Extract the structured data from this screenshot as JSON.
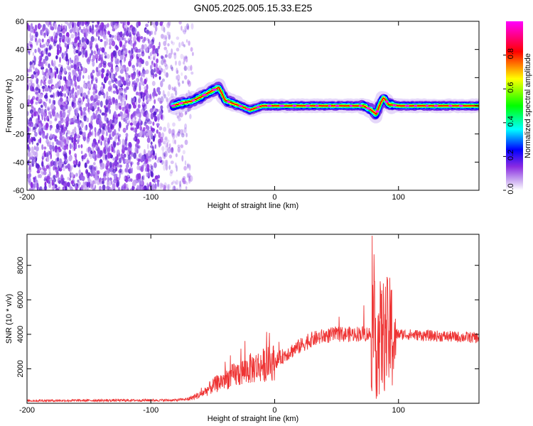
{
  "title": "GN05.2025.005.15.33.E25",
  "colors": {
    "snr_line": "#ee3333",
    "noise_dots": "#8a2be2",
    "frame": "#000000"
  },
  "chart_data": [
    {
      "type": "heatmap",
      "xlabel": "Height of straight line (km)",
      "ylabel": "Frequency (Hz)",
      "xlim": [
        -200,
        165
      ],
      "ylim": [
        -60,
        60
      ],
      "xticks": [
        -200,
        -100,
        0,
        100
      ],
      "yticks": [
        -60,
        -40,
        -20,
        0,
        20,
        40,
        60
      ],
      "colorbar": {
        "label": "Normalized spectral amplitude",
        "range": [
          0,
          1
        ],
        "ticks": [
          "0.0",
          "0.2",
          "0.4",
          "0.6",
          "0.8"
        ],
        "colormap": [
          "#ffffff",
          "#8a2be2",
          "#0000ff",
          "#00ffff",
          "#00ff00",
          "#ffff00",
          "#ff0000",
          "#ff00ff"
        ]
      },
      "ridge": {
        "x": [
          -82,
          -75,
          -68,
          -60,
          -52,
          -45,
          -40,
          -35,
          -28,
          -20,
          -10,
          0,
          20,
          40,
          60,
          72,
          78,
          82,
          85,
          88,
          92,
          100,
          130,
          165
        ],
        "y": [
          0,
          2,
          3,
          6,
          10,
          13,
          4,
          2,
          0,
          -3,
          0,
          0,
          0,
          0,
          0,
          0,
          -3,
          -6,
          1,
          6,
          1,
          0,
          0,
          0
        ]
      },
      "noise_region_x": [
        -200,
        -66
      ]
    },
    {
      "type": "line",
      "xlabel": "Height of straight line (km)",
      "ylabel": "SNR (10 * v/v)",
      "xlim": [
        -200,
        165
      ],
      "ylim": [
        0,
        9800
      ],
      "xticks": [
        -200,
        -100,
        0,
        100
      ],
      "yticks": [
        2000,
        4000,
        6000,
        8000
      ],
      "envelope": {
        "x": [
          -200,
          -80,
          -70,
          -60,
          -50,
          -40,
          -30,
          -20,
          -10,
          0,
          10,
          20,
          30,
          40,
          50,
          60,
          70,
          78,
          82,
          86,
          90,
          95,
          98,
          105,
          130,
          165
        ],
        "y": [
          150,
          180,
          250,
          500,
          1000,
          1400,
          1700,
          2000,
          2200,
          2400,
          2900,
          3300,
          3700,
          3900,
          4000,
          4000,
          4050,
          4000,
          3600,
          3800,
          4000,
          3900,
          4000,
          4000,
          3900,
          3800
        ]
      }
    }
  ]
}
